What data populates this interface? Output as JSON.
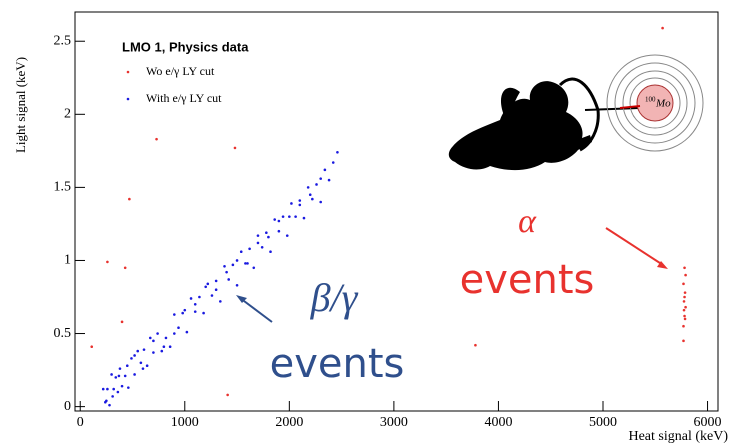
{
  "chart_data": {
    "type": "scatter",
    "xlabel": "Heat signal (keV)",
    "ylabel": "Light signal (keV)",
    "legend_title": "LMO 1, Physics data",
    "legend_position": "upper left",
    "xlim": [
      -50,
      6100
    ],
    "ylim": [
      -0.03,
      2.7
    ],
    "xticks": [
      0,
      1000,
      2000,
      3000,
      4000,
      5000,
      6000
    ],
    "yticks": [
      0,
      0.5,
      1,
      1.5,
      2,
      2.5
    ],
    "grid": false,
    "series": [
      {
        "name": "Wo e/γ LY cut",
        "color": "#e8322e",
        "x": [
          260,
          430,
          400,
          110,
          470,
          730,
          1480,
          1410,
          3780,
          5570,
          5770,
          5780,
          5790,
          5775,
          5785,
          5770,
          5790,
          5780,
          5775,
          5785,
          5780,
          5770
        ],
        "y": [
          0.99,
          0.95,
          0.58,
          0.41,
          1.42,
          1.83,
          1.77,
          0.08,
          0.42,
          2.59,
          0.55,
          0.62,
          0.68,
          0.72,
          0.78,
          0.84,
          0.9,
          0.95,
          0.66,
          0.6,
          0.75,
          0.45
        ]
      },
      {
        "name": "With e/γ LY cut",
        "color": "#1a1ae0",
        "x": [
          220,
          240,
          260,
          280,
          300,
          320,
          340,
          360,
          380,
          400,
          430,
          460,
          490,
          520,
          550,
          580,
          610,
          640,
          670,
          700,
          740,
          780,
          820,
          860,
          900,
          940,
          980,
          1020,
          1060,
          1100,
          1140,
          1180,
          1220,
          1260,
          1300,
          1340,
          1380,
          1420,
          1460,
          1500,
          1540,
          1580,
          1620,
          1660,
          1700,
          1740,
          1780,
          1820,
          1860,
          1900,
          1940,
          1980,
          2020,
          2060,
          2100,
          2140,
          2180,
          2220,
          2260,
          2300,
          2340,
          2380,
          2420,
          2460,
          250,
          310,
          370,
          450,
          520,
          600,
          700,
          800,
          900,
          1000,
          1100,
          1200,
          1300,
          1400,
          1500,
          1600,
          1700,
          1800,
          1900,
          2000,
          2100,
          2200,
          2300
        ],
        "y": [
          0.12,
          0.03,
          0.12,
          0.01,
          0.22,
          0.12,
          0.2,
          0.1,
          0.26,
          0.14,
          0.21,
          0.13,
          0.33,
          0.22,
          0.38,
          0.3,
          0.39,
          0.28,
          0.47,
          0.37,
          0.5,
          0.38,
          0.47,
          0.41,
          0.63,
          0.54,
          0.64,
          0.51,
          0.74,
          0.65,
          0.75,
          0.64,
          0.84,
          0.76,
          0.86,
          0.72,
          0.96,
          0.87,
          0.97,
          0.83,
          1.06,
          0.98,
          1.08,
          0.95,
          1.17,
          1.09,
          1.19,
          1.06,
          1.28,
          1.2,
          1.3,
          1.17,
          1.39,
          1.3,
          1.41,
          1.29,
          1.5,
          1.42,
          1.52,
          1.4,
          1.62,
          1.55,
          1.67,
          1.74,
          0.04,
          0.07,
          0.21,
          0.28,
          0.35,
          0.26,
          0.45,
          0.41,
          0.5,
          0.66,
          0.7,
          0.82,
          0.8,
          0.92,
          1.0,
          0.98,
          1.12,
          1.16,
          1.27,
          1.3,
          1.38,
          1.45,
          1.56
        ]
      }
    ],
    "annotations": [
      {
        "text": "β/γ",
        "color": "#2f4f8c"
      },
      {
        "text": "events",
        "color": "#2f4f8c"
      },
      {
        "text": "α",
        "color": "#e8322e"
      },
      {
        "text": "events",
        "color": "#e8322e"
      }
    ],
    "isotope": {
      "mass": "100",
      "symbol": "Mo"
    }
  }
}
